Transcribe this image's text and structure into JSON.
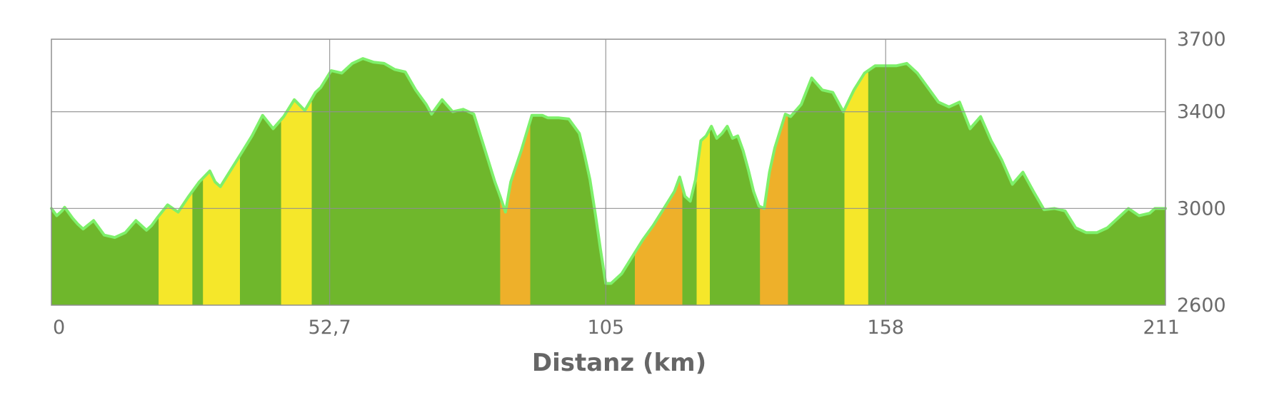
{
  "chart_data": {
    "type": "area",
    "title": "",
    "xlabel": "Distanz (km)",
    "ylabel": "",
    "xlim": [
      0,
      211
    ],
    "ylim": [
      2600,
      3700
    ],
    "x_ticks": [
      0,
      52.7,
      105,
      158,
      211
    ],
    "x_tick_labels": [
      "0",
      "52,7",
      "105",
      "158",
      "211"
    ],
    "y_ticks": [
      2600,
      3000,
      3400,
      3700
    ],
    "y_tick_labels": [
      "2600",
      "3000",
      "3400",
      "3700"
    ],
    "y_axis_side": "right",
    "grid": true,
    "legend": "none",
    "series": [
      {
        "x": [
          0,
          1,
          2,
          2.5,
          4,
          5,
          6,
          8,
          10,
          12,
          14,
          16,
          18,
          19,
          20,
          22,
          24,
          26,
          28,
          30,
          31,
          32,
          34,
          36,
          38,
          40,
          42,
          44,
          46,
          48,
          50,
          51,
          53,
          55,
          57,
          59,
          61,
          63,
          65,
          67,
          69,
          70,
          71,
          72,
          74,
          76,
          78,
          80,
          82,
          84,
          85,
          86,
          87,
          89,
          91,
          93,
          94,
          96,
          98,
          100,
          101,
          102,
          103,
          104,
          105,
          106,
          108,
          110,
          112,
          114,
          116,
          118,
          119,
          120,
          121,
          122,
          123,
          124,
          125,
          126,
          127,
          128,
          129,
          130,
          131,
          132,
          133,
          134,
          135,
          136,
          137,
          138,
          139,
          140,
          142,
          144,
          146,
          148,
          150,
          152,
          154,
          156,
          158,
          160,
          162,
          164,
          166,
          168,
          170,
          172,
          174,
          176,
          178,
          180,
          182,
          184,
          186,
          188,
          190,
          192,
          194,
          196,
          198,
          200,
          202,
          204,
          206,
          208,
          209,
          211
        ],
        "y": [
          3000,
          2970,
          2990,
          3005,
          2960,
          2935,
          2915,
          2950,
          2890,
          2880,
          2900,
          2950,
          2910,
          2930,
          2960,
          3015,
          2985,
          3050,
          3110,
          3155,
          3110,
          3090,
          3160,
          3230,
          3300,
          3385,
          3330,
          3380,
          3450,
          3405,
          3480,
          3500,
          3570,
          3560,
          3600,
          3620,
          3605,
          3600,
          3575,
          3565,
          3490,
          3460,
          3430,
          3390,
          3450,
          3400,
          3410,
          3390,
          3250,
          3110,
          3050,
          2985,
          3110,
          3240,
          3385,
          3385,
          3375,
          3375,
          3370,
          3310,
          3220,
          3120,
          2980,
          2830,
          2690,
          2690,
          2730,
          2800,
          2870,
          2930,
          3000,
          3070,
          3130,
          3050,
          3030,
          3120,
          3280,
          3300,
          3340,
          3290,
          3310,
          3340,
          3290,
          3300,
          3240,
          3160,
          3070,
          3010,
          3000,
          3150,
          3250,
          3320,
          3390,
          3380,
          3430,
          3540,
          3490,
          3480,
          3400,
          3490,
          3560,
          3590,
          3590,
          3590,
          3600,
          3560,
          3500,
          3440,
          3420,
          3440,
          3330,
          3380,
          3280,
          3200,
          3100,
          3150,
          3070,
          2995,
          3000,
          2990,
          2920,
          2900,
          2900,
          2920,
          2960,
          3000,
          2970,
          2980,
          3000,
          3000
        ]
      }
    ],
    "grade_bands": [
      {
        "x0": 20.3,
        "x1": 26.7,
        "color": "#f5e72a"
      },
      {
        "x0": 28.7,
        "x1": 35.7,
        "color": "#f5e72a"
      },
      {
        "x0": 43.5,
        "x1": 49.3,
        "color": "#f5e72a"
      },
      {
        "x0": 85,
        "x1": 90.7,
        "color": "#eeb02a"
      },
      {
        "x0": 110.5,
        "x1": 119.5,
        "color": "#eeb02a"
      },
      {
        "x0": 122.2,
        "x1": 124.7,
        "color": "#f5e72a"
      },
      {
        "x0": 134.2,
        "x1": 139.5,
        "color": "#eeb02a"
      },
      {
        "x0": 150.2,
        "x1": 154.7,
        "color": "#f5e72a"
      }
    ],
    "colors": {
      "area": "#6fb72c",
      "outline": "#7ef06a",
      "moderate_band": "#f5e72a",
      "steep_band": "#eeb02a",
      "grid": "#8f8f8f",
      "frame": "#8f8f8f",
      "text": "#6b6b6b"
    }
  }
}
